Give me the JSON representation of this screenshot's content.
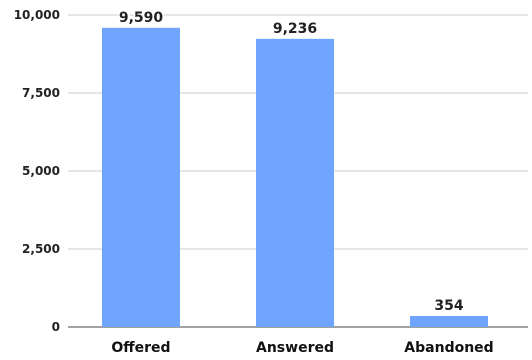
{
  "chart_data": {
    "type": "bar",
    "categories": [
      "Offered",
      "Answered",
      "Abandoned"
    ],
    "values": [
      9590,
      9236,
      354
    ],
    "data_labels": [
      "9,590",
      "9,236",
      "354"
    ],
    "y_ticks": [
      0,
      2500,
      5000,
      7500,
      10000
    ],
    "y_tick_labels": [
      "0",
      "2,500",
      "5,000",
      "7,500",
      "10,000"
    ],
    "ylim": [
      0,
      10000
    ],
    "title": "",
    "xlabel": "",
    "ylabel": "",
    "grid": true,
    "bar_color": "#6fa5ff",
    "legend": "none"
  }
}
